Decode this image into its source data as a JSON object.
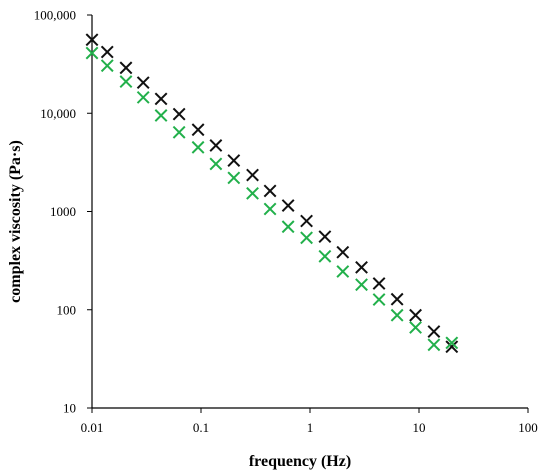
{
  "chart_data": {
    "type": "scatter",
    "xlabel": "frequency (Hz)",
    "ylabel": "complex viscosity (Pa·s)",
    "xscale": "log",
    "yscale": "log",
    "xlim": [
      0.01,
      100
    ],
    "ylim": [
      10,
      100000
    ],
    "x_tick_labels": [
      "0.01",
      "0.1",
      "1",
      "10",
      "100"
    ],
    "y_tick_labels": [
      "10",
      "100",
      "1000",
      "10,000",
      "100,000"
    ],
    "grid": false,
    "marker": "x",
    "series": [
      {
        "color": "#111111",
        "points": [
          [
            0.01,
            56000
          ],
          [
            0.0138,
            42000
          ],
          [
            0.0205,
            29000
          ],
          [
            0.0295,
            20500
          ],
          [
            0.043,
            14000
          ],
          [
            0.063,
            9800
          ],
          [
            0.094,
            6800
          ],
          [
            0.137,
            4700
          ],
          [
            0.2,
            3300
          ],
          [
            0.297,
            2350
          ],
          [
            0.43,
            1620
          ],
          [
            0.63,
            1150
          ],
          [
            0.93,
            800
          ],
          [
            1.37,
            555
          ],
          [
            2.0,
            385
          ],
          [
            2.97,
            270
          ],
          [
            4.3,
            185
          ],
          [
            6.3,
            128
          ],
          [
            9.3,
            88
          ],
          [
            13.7,
            60
          ],
          [
            20.0,
            42
          ]
        ]
      },
      {
        "color": "#22b04b",
        "points": [
          [
            0.01,
            41000
          ],
          [
            0.0138,
            30500
          ],
          [
            0.0205,
            21000
          ],
          [
            0.0295,
            14500
          ],
          [
            0.043,
            9500
          ],
          [
            0.063,
            6400
          ],
          [
            0.094,
            4500
          ],
          [
            0.137,
            3050
          ],
          [
            0.2,
            2200
          ],
          [
            0.297,
            1530
          ],
          [
            0.43,
            1060
          ],
          [
            0.63,
            700
          ],
          [
            0.93,
            540
          ],
          [
            1.37,
            350
          ],
          [
            2.0,
            245
          ],
          [
            2.97,
            180
          ],
          [
            4.3,
            127
          ],
          [
            6.3,
            88
          ],
          [
            9.3,
            66
          ],
          [
            13.7,
            44
          ],
          [
            20.0,
            46
          ]
        ]
      }
    ]
  }
}
